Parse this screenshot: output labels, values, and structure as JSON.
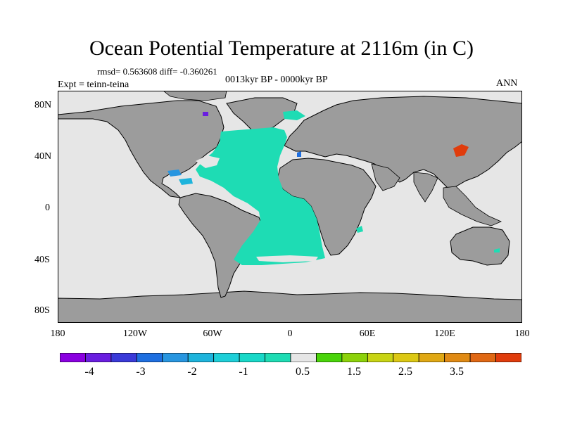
{
  "title": "Ocean Potential Temperature at 2116m (in C)",
  "stats": "rmsd= 0.563608 diff= -0.360261",
  "period": "0013kyr BP - 0000kyr BP",
  "expt": "Expt = teinn-teina",
  "season": "ANN",
  "lat_labels": [
    "80N",
    "40N",
    "0",
    "40S",
    "80S"
  ],
  "lon_labels": [
    "180",
    "120W",
    "60W",
    "0",
    "60E",
    "120E",
    "180"
  ],
  "colorbar": {
    "colors": [
      "#8a00e0",
      "#6a1ee0",
      "#3a3ad8",
      "#1e6fe0",
      "#2896e0",
      "#1eb4dc",
      "#1ecfd8",
      "#18d8c8",
      "#1edcb4",
      "#e6e6e6",
      "#4ad40a",
      "#8cd20a",
      "#c8d414",
      "#dcc814",
      "#e0a814",
      "#e08a14",
      "#e06814",
      "#e03c0c"
    ],
    "labels": [
      "-4",
      "-3",
      "-2",
      "-1",
      "0.5",
      "1.5",
      "2.5",
      "3.5"
    ]
  },
  "map_colors": {
    "land": "#9c9c9c",
    "ocean_neutral": "#e6e6e6",
    "cool_anomaly": "#1edcb4",
    "mid_cool_anomaly": "#2896e0",
    "strong_cool_anomaly": "#6a1ee0",
    "warm_anomaly": "#e03c0c"
  }
}
